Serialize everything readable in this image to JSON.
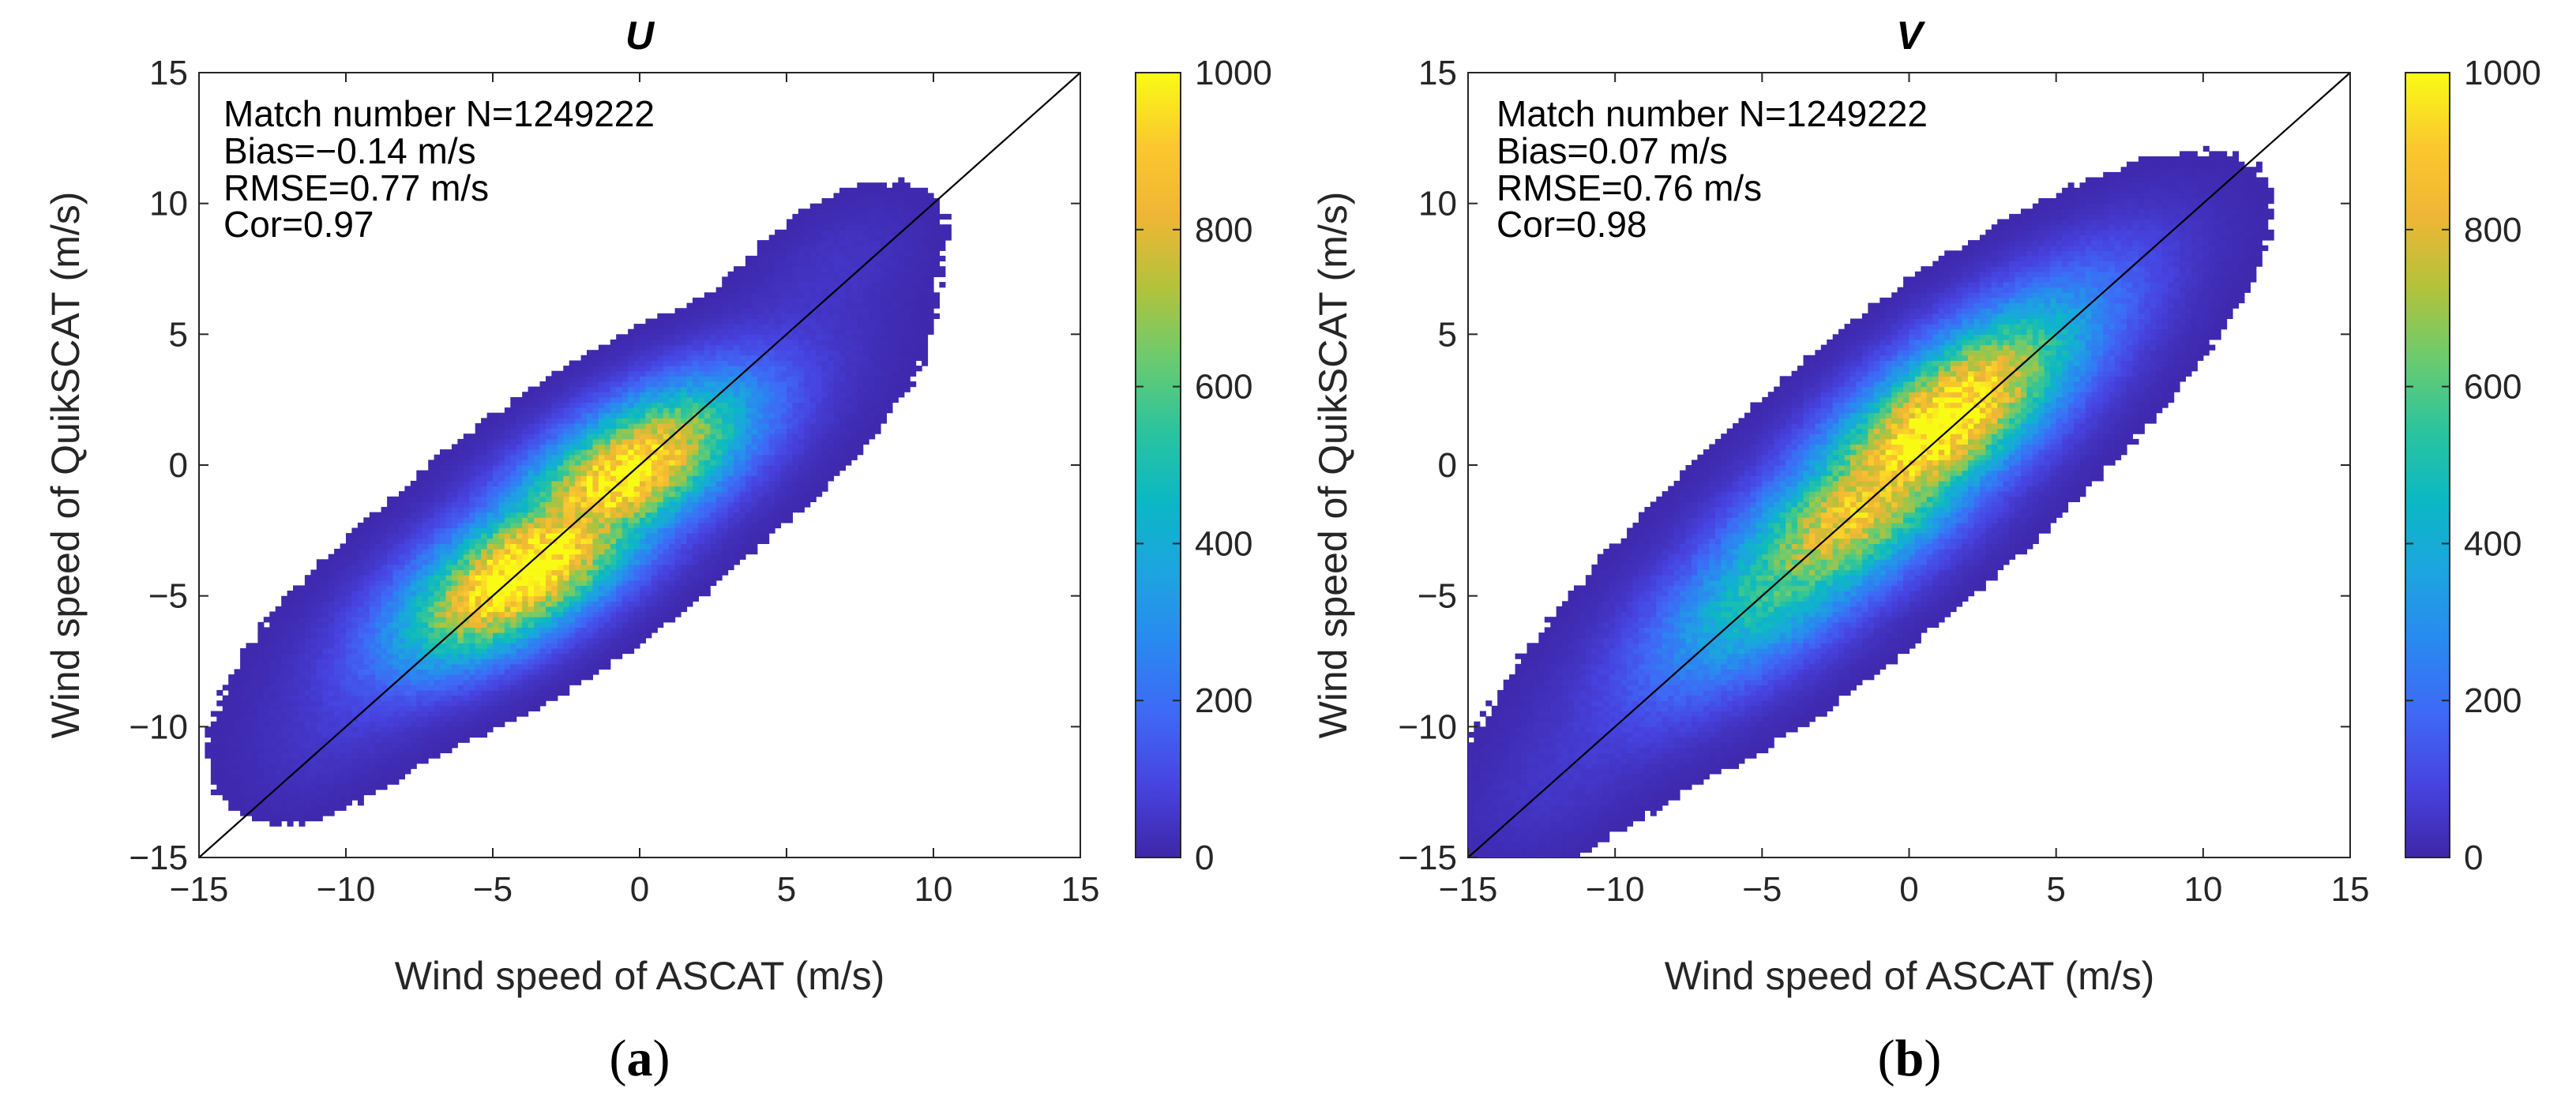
{
  "colors": {
    "colormap": [
      "#3e26a8",
      "#4743e0",
      "#3f68f6",
      "#2a88f0",
      "#1da4e0",
      "#0bb8c4",
      "#2cc49d",
      "#6ccb6e",
      "#b4c23a",
      "#efb635",
      "#fac92e",
      "#f9fb15"
    ],
    "axis": "#262626",
    "background": "#ffffff"
  },
  "chart_data": [
    {
      "type": "heatmap",
      "panel_label": "a",
      "title": "U",
      "xlabel": "Wind speed of ASCAT (m/s)",
      "ylabel": "Wind speed of QuikSCAT (m/s)",
      "xlim": [
        -15,
        15
      ],
      "ylim": [
        -15,
        15
      ],
      "xticks": [
        -15,
        -10,
        -5,
        0,
        5,
        10,
        15
      ],
      "yticks": [
        -15,
        -10,
        -5,
        0,
        5,
        10,
        15
      ],
      "tick_labels": [
        "−15",
        "−10",
        "−5",
        "0",
        "5",
        "10",
        "15"
      ],
      "reference_line": "1:1",
      "stats": [
        "Match number N=1249222",
        "Bias=−0.14 m/s",
        "RMSE=0.77 m/s",
        "Cor=0.97"
      ],
      "density": {
        "orientation_deg": 37,
        "spread_major": 5.6,
        "spread_minor": 1.4,
        "cores": [
          {
            "x": -4.0,
            "y": -4.2,
            "count": 880
          },
          {
            "x": -0.4,
            "y": -0.2,
            "count": 800
          },
          {
            "x": -2.4,
            "y": -2.4,
            "count": 520
          }
        ],
        "tails": [
          {
            "x": 6.8,
            "y": 7.8,
            "count": 40
          },
          {
            "x": -10.5,
            "y": -10.8,
            "count": 30
          }
        ]
      },
      "colorbar": {
        "min": 0,
        "max": 1000,
        "ticks": [
          0,
          200,
          400,
          600,
          800,
          1000
        ]
      }
    },
    {
      "type": "heatmap",
      "panel_label": "b",
      "title": "V",
      "xlabel": "Wind speed of ASCAT (m/s)",
      "ylabel": "Wind speed of QuikSCAT (m/s)",
      "xlim": [
        -15,
        15
      ],
      "ylim": [
        -15,
        15
      ],
      "xticks": [
        -15,
        -10,
        -5,
        0,
        5,
        10,
        15
      ],
      "yticks": [
        -15,
        -10,
        -5,
        0,
        5,
        10,
        15
      ],
      "tick_labels": [
        "−15",
        "−10",
        "−5",
        "0",
        "5",
        "10",
        "15"
      ],
      "reference_line": "1:1",
      "stats": [
        "Match number N=1249222",
        "Bias=0.07 m/s",
        "RMSE=0.76 m/s",
        "Cor=0.98"
      ],
      "density": {
        "orientation_deg": 43,
        "spread_major": 6.8,
        "spread_minor": 1.5,
        "cores": [
          {
            "x": 1.2,
            "y": 1.8,
            "count": 860
          },
          {
            "x": -1.6,
            "y": -1.6,
            "count": 620
          },
          {
            "x": -4.0,
            "y": -4.2,
            "count": 380
          }
        ],
        "tails": [
          {
            "x": 7.0,
            "y": 7.4,
            "count": 40
          },
          {
            "x": -12.3,
            "y": -12.6,
            "count": 30
          }
        ]
      },
      "colorbar": {
        "min": 0,
        "max": 1000,
        "ticks": [
          0,
          200,
          400,
          600,
          800,
          1000
        ]
      }
    }
  ]
}
